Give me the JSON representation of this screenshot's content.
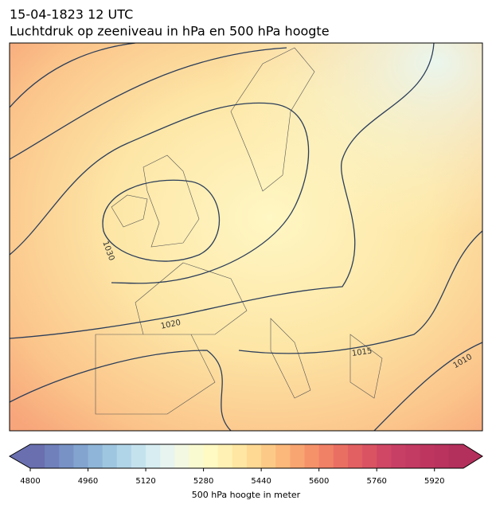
{
  "title": [
    "15-04-1823 12 UTC",
    "Luchtdruk op zeeniveau in hPa en 500 hPa hoogte"
  ],
  "contour_labels": [
    "1030",
    "1020",
    "1015",
    "1010"
  ],
  "colorbar": {
    "label": "500 hPa hoogte in meter",
    "lim": [
      4800,
      6000
    ],
    "ticks": [
      4800,
      4960,
      5120,
      5280,
      5440,
      5600,
      5760,
      5920
    ],
    "colors": [
      "#6a6fb0",
      "#7080bb",
      "#7892c6",
      "#82a4cf",
      "#8fb6d8",
      "#9fc6e0",
      "#b1d5e8",
      "#c4e2ee",
      "#d7edf1",
      "#e7f4ef",
      "#f2f8e2",
      "#fafad0",
      "#fff9c3",
      "#fff1b3",
      "#ffe6a2",
      "#fed994",
      "#fcca86",
      "#fbb87a",
      "#f8a571",
      "#f5926a",
      "#f08066",
      "#ea6f63",
      "#e26062",
      "#d95363",
      "#cf4765",
      "#c83f65",
      "#c33a62",
      "#be3660",
      "#b9335e",
      "#b4305c"
    ]
  }
}
